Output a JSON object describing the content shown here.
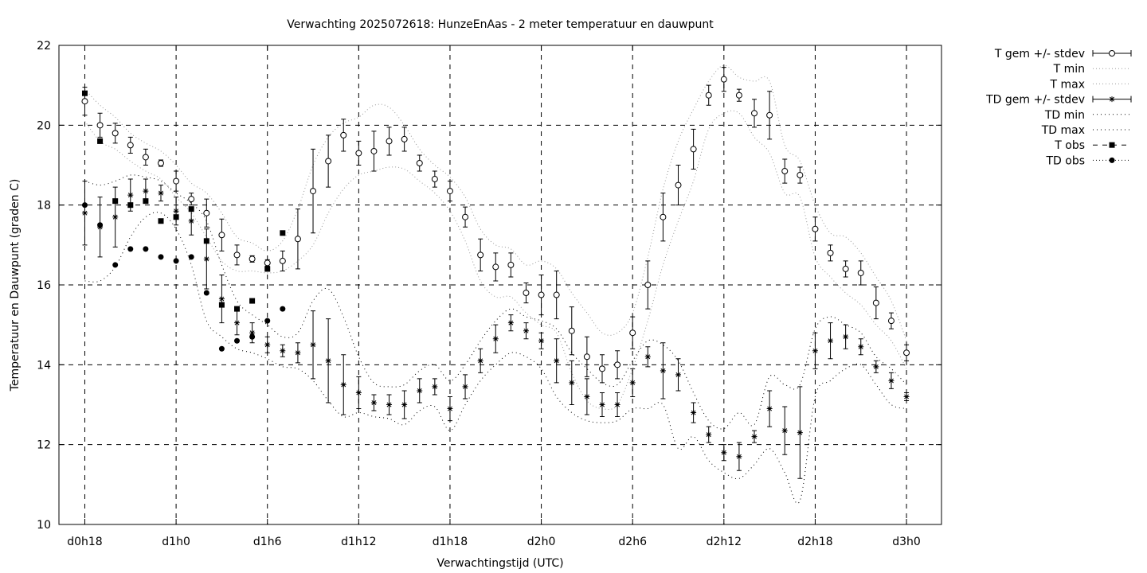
{
  "chart_data": {
    "type": "scatter",
    "title": "Verwachting 2025072618: HunzeEnAas - 2 meter temperatuur en dauwpunt",
    "xlabel": "Verwachtingstijd (UTC)",
    "ylabel": "Temperatuur en Dauwpunt (graden C)",
    "ylim": [
      10,
      22
    ],
    "xlim": [
      -1.7,
      56.3
    ],
    "y_ticks": [
      "10",
      "12",
      "14",
      "16",
      "18",
      "20",
      "22"
    ],
    "x_ticks": [
      {
        "x": 0,
        "label": "d0h18"
      },
      {
        "x": 6,
        "label": "d1h0"
      },
      {
        "x": 12,
        "label": "d1h6"
      },
      {
        "x": 18,
        "label": "d1h12"
      },
      {
        "x": 24,
        "label": "d1h18"
      },
      {
        "x": 30,
        "label": "d2h0"
      },
      {
        "x": 36,
        "label": "d2h6"
      },
      {
        "x": 42,
        "label": "d2h12"
      },
      {
        "x": 48,
        "label": "d2h18"
      },
      {
        "x": 54,
        "label": "d3h0"
      }
    ],
    "grid": true,
    "legend_position": "right",
    "legend": [
      {
        "label": "T gem +/- stdev",
        "key": "t_mean"
      },
      {
        "label": "T min",
        "key": "t_min"
      },
      {
        "label": "T max",
        "key": "t_max"
      },
      {
        "label": "TD gem +/- stdev",
        "key": "td_mean"
      },
      {
        "label": "TD min",
        "key": "td_min"
      },
      {
        "label": "TD max",
        "key": "td_max"
      },
      {
        "label": "T obs",
        "key": "t_obs"
      },
      {
        "label": "TD obs",
        "key": "td_obs"
      }
    ],
    "series": {
      "t_mean": {
        "x": [
          0,
          1,
          2,
          3,
          4,
          5,
          6,
          7,
          8,
          9,
          10,
          11,
          12,
          13,
          14,
          15,
          16,
          17,
          18,
          19,
          20,
          21,
          22,
          23,
          24,
          25,
          26,
          27,
          28,
          29,
          30,
          31,
          32,
          33,
          34,
          35,
          36,
          37,
          38,
          39,
          40,
          41,
          42,
          43,
          44,
          45,
          46,
          47,
          48,
          49,
          50,
          51,
          52,
          53,
          54
        ],
        "y": [
          20.6,
          20.0,
          19.8,
          19.5,
          19.2,
          19.05,
          18.6,
          18.15,
          17.8,
          17.25,
          16.75,
          16.65,
          16.55,
          16.6,
          17.15,
          18.35,
          19.1,
          19.75,
          19.3,
          19.35,
          19.6,
          19.65,
          19.05,
          18.65,
          18.35,
          17.7,
          16.75,
          16.45,
          16.5,
          15.8,
          15.75,
          15.75,
          14.85,
          14.2,
          13.9,
          14.0,
          14.8,
          16.0,
          17.7,
          18.5,
          19.4,
          20.75,
          21.15,
          20.75,
          20.3,
          20.25,
          18.85,
          18.75,
          17.4,
          16.8,
          16.4,
          16.3,
          15.55,
          15.1,
          14.3
        ],
        "err": [
          0.35,
          0.3,
          0.25,
          0.2,
          0.2,
          0.08,
          0.25,
          0.15,
          0.35,
          0.4,
          0.25,
          0.08,
          0.08,
          0.25,
          0.75,
          1.05,
          0.65,
          0.4,
          0.3,
          0.5,
          0.35,
          0.3,
          0.2,
          0.2,
          0.25,
          0.25,
          0.4,
          0.35,
          0.3,
          0.25,
          0.5,
          0.6,
          0.6,
          0.5,
          0.35,
          0.35,
          0.4,
          0.6,
          0.6,
          0.5,
          0.5,
          0.25,
          0.3,
          0.15,
          0.35,
          0.6,
          0.3,
          0.2,
          0.3,
          0.2,
          0.2,
          0.3,
          0.4,
          0.2,
          0.2
        ]
      },
      "t_min": {
        "x": [
          0,
          1,
          2,
          3,
          4,
          5,
          6,
          7,
          8,
          9,
          10,
          11,
          12,
          13,
          14,
          15,
          16,
          17,
          18,
          19,
          20,
          21,
          22,
          23,
          24,
          25,
          26,
          27,
          28,
          29,
          30,
          31,
          32,
          33,
          34,
          35,
          36,
          37,
          38,
          39,
          40,
          41,
          42,
          43,
          44,
          45,
          46,
          47,
          48,
          49,
          50,
          51,
          52,
          53,
          54
        ],
        "y": [
          20.1,
          19.6,
          19.4,
          19.1,
          18.85,
          18.65,
          18.2,
          17.8,
          17.2,
          16.6,
          16.35,
          16.35,
          16.3,
          16.35,
          16.6,
          17.0,
          17.8,
          18.4,
          18.75,
          18.85,
          18.95,
          18.9,
          18.6,
          18.3,
          17.85,
          17.1,
          16.1,
          15.7,
          15.7,
          15.3,
          15.0,
          14.8,
          13.8,
          13.1,
          12.9,
          13.0,
          13.9,
          15.1,
          16.5,
          17.6,
          18.6,
          19.9,
          20.3,
          20.3,
          19.7,
          19.3,
          18.3,
          18.2,
          16.7,
          16.2,
          15.8,
          15.5,
          15.0,
          14.6,
          13.9
        ]
      },
      "t_max": {
        "x": [
          0,
          1,
          2,
          3,
          4,
          5,
          6,
          7,
          8,
          9,
          10,
          11,
          12,
          13,
          14,
          15,
          16,
          17,
          18,
          19,
          20,
          21,
          22,
          23,
          24,
          25,
          26,
          27,
          28,
          29,
          30,
          31,
          32,
          33,
          34,
          35,
          36,
          37,
          38,
          39,
          40,
          41,
          42,
          43,
          44,
          45,
          46,
          47,
          48,
          49,
          50,
          51,
          52,
          53,
          54
        ],
        "y": [
          20.9,
          20.5,
          20.2,
          19.8,
          19.55,
          19.35,
          19.0,
          18.55,
          18.3,
          17.8,
          17.2,
          17.05,
          16.85,
          17.1,
          17.9,
          19.0,
          19.7,
          20.05,
          20.2,
          20.5,
          20.45,
          20.0,
          19.4,
          19.0,
          18.7,
          18.2,
          17.4,
          17.0,
          16.9,
          16.5,
          16.6,
          16.4,
          15.8,
          15.3,
          14.8,
          14.8,
          15.3,
          16.7,
          18.4,
          19.6,
          20.4,
          21.1,
          21.5,
          21.2,
          21.1,
          21.1,
          19.5,
          19.1,
          18.0,
          17.3,
          17.2,
          16.8,
          16.2,
          15.6,
          14.6
        ]
      },
      "td_mean": {
        "x": [
          0,
          1,
          2,
          3,
          4,
          5,
          6,
          7,
          8,
          9,
          10,
          11,
          12,
          13,
          14,
          15,
          16,
          17,
          18,
          19,
          20,
          21,
          22,
          23,
          24,
          25,
          26,
          27,
          28,
          29,
          30,
          31,
          32,
          33,
          34,
          35,
          36,
          37,
          38,
          39,
          40,
          41,
          42,
          43,
          44,
          45,
          46,
          47,
          48,
          49,
          50,
          51,
          52,
          53,
          54
        ],
        "y": [
          17.8,
          17.45,
          17.7,
          18.25,
          18.35,
          18.3,
          17.85,
          17.6,
          16.65,
          15.65,
          15.05,
          14.8,
          14.5,
          14.35,
          14.3,
          14.5,
          14.1,
          13.5,
          13.3,
          13.05,
          13.0,
          13.0,
          13.35,
          13.45,
          12.9,
          13.45,
          14.1,
          14.65,
          15.05,
          14.85,
          14.6,
          14.1,
          13.55,
          13.2,
          13.0,
          13.0,
          13.55,
          14.2,
          13.85,
          13.75,
          12.8,
          12.25,
          11.8,
          11.7,
          12.2,
          12.9,
          12.35,
          12.3,
          14.35,
          14.6,
          14.7,
          14.45,
          13.95,
          13.6,
          13.2
        ]
      },
      "td_err": [
        0.8,
        0.75,
        0.75,
        0.4,
        0.3,
        0.2,
        0.35,
        0.35,
        0.75,
        0.6,
        0.3,
        0.25,
        0.2,
        0.15,
        0.25,
        0.85,
        1.05,
        0.75,
        0.4,
        0.2,
        0.25,
        0.35,
        0.3,
        0.2,
        0.3,
        0.3,
        0.3,
        0.35,
        0.2,
        0.2,
        0.2,
        0.55,
        0.55,
        0.45,
        0.3,
        0.3,
        0.35,
        0.25,
        0.7,
        0.4,
        0.25,
        0.2,
        0.2,
        0.35,
        0.15,
        0.45,
        0.6,
        1.15,
        0.45,
        0.45,
        0.3,
        0.2,
        0.15,
        0.2,
        0.1
      ],
      "td_min": {
        "x": [
          0,
          1,
          2,
          3,
          4,
          5,
          6,
          7,
          8,
          9,
          10,
          11,
          12,
          13,
          14,
          15,
          16,
          17,
          18,
          19,
          20,
          21,
          22,
          23,
          24,
          25,
          26,
          27,
          28,
          29,
          30,
          31,
          32,
          33,
          34,
          35,
          36,
          37,
          38,
          39,
          40,
          41,
          42,
          43,
          44,
          45,
          46,
          47,
          48,
          49,
          50,
          51,
          52,
          53,
          54
        ],
        "y": [
          16.1,
          16.1,
          16.45,
          17.2,
          17.7,
          17.8,
          17.4,
          16.5,
          15.1,
          14.7,
          14.4,
          14.3,
          14.15,
          13.95,
          13.9,
          13.6,
          13.1,
          12.7,
          12.8,
          12.7,
          12.65,
          12.5,
          12.85,
          12.95,
          12.35,
          13.0,
          13.6,
          14.0,
          14.3,
          14.2,
          13.9,
          13.2,
          12.8,
          12.6,
          12.55,
          12.6,
          12.9,
          12.9,
          13.0,
          11.9,
          12.2,
          11.6,
          11.3,
          11.15,
          11.5,
          11.9,
          11.3,
          10.6,
          13.2,
          13.6,
          13.9,
          14.0,
          13.5,
          13.0,
          12.9
        ]
      },
      "td_max": {
        "x": [
          0,
          1,
          2,
          3,
          4,
          5,
          6,
          7,
          8,
          9,
          10,
          11,
          12,
          13,
          14,
          15,
          16,
          17,
          18,
          19,
          20,
          21,
          22,
          23,
          24,
          25,
          26,
          27,
          28,
          29,
          30,
          31,
          32,
          33,
          34,
          35,
          36,
          37,
          38,
          39,
          40,
          41,
          42,
          43,
          44,
          45,
          46,
          47,
          48,
          49,
          50,
          51,
          52,
          53,
          54
        ],
        "y": [
          18.6,
          18.5,
          18.6,
          18.75,
          18.7,
          18.6,
          18.3,
          18.05,
          17.6,
          16.5,
          15.6,
          15.25,
          15.0,
          14.7,
          14.8,
          15.6,
          15.9,
          15.2,
          14.2,
          13.55,
          13.45,
          13.5,
          13.85,
          14.0,
          13.6,
          14.0,
          14.6,
          15.1,
          15.4,
          15.2,
          15.1,
          14.9,
          14.3,
          13.9,
          13.55,
          13.5,
          14.1,
          14.6,
          14.5,
          14.1,
          13.3,
          12.6,
          12.4,
          12.8,
          12.5,
          13.7,
          13.5,
          13.5,
          14.9,
          15.2,
          15.0,
          14.8,
          14.2,
          13.9,
          13.5
        ]
      },
      "t_obs": {
        "x": [
          0,
          1,
          2,
          3,
          4,
          5,
          6,
          7,
          8,
          9,
          10,
          11,
          12,
          13
        ],
        "y": [
          20.8,
          19.6,
          18.1,
          18.0,
          18.1,
          17.6,
          17.7,
          17.9,
          17.1,
          15.5,
          15.4,
          15.6,
          16.4,
          17.3
        ]
      },
      "td_obs": {
        "x": [
          0,
          1,
          2,
          3,
          4,
          5,
          6,
          7,
          8,
          9,
          10,
          11,
          12,
          13
        ],
        "y": [
          18.0,
          17.5,
          16.5,
          16.9,
          16.9,
          16.7,
          16.6,
          16.7,
          15.8,
          14.4,
          14.6,
          14.7,
          15.1,
          15.4
        ]
      }
    }
  }
}
